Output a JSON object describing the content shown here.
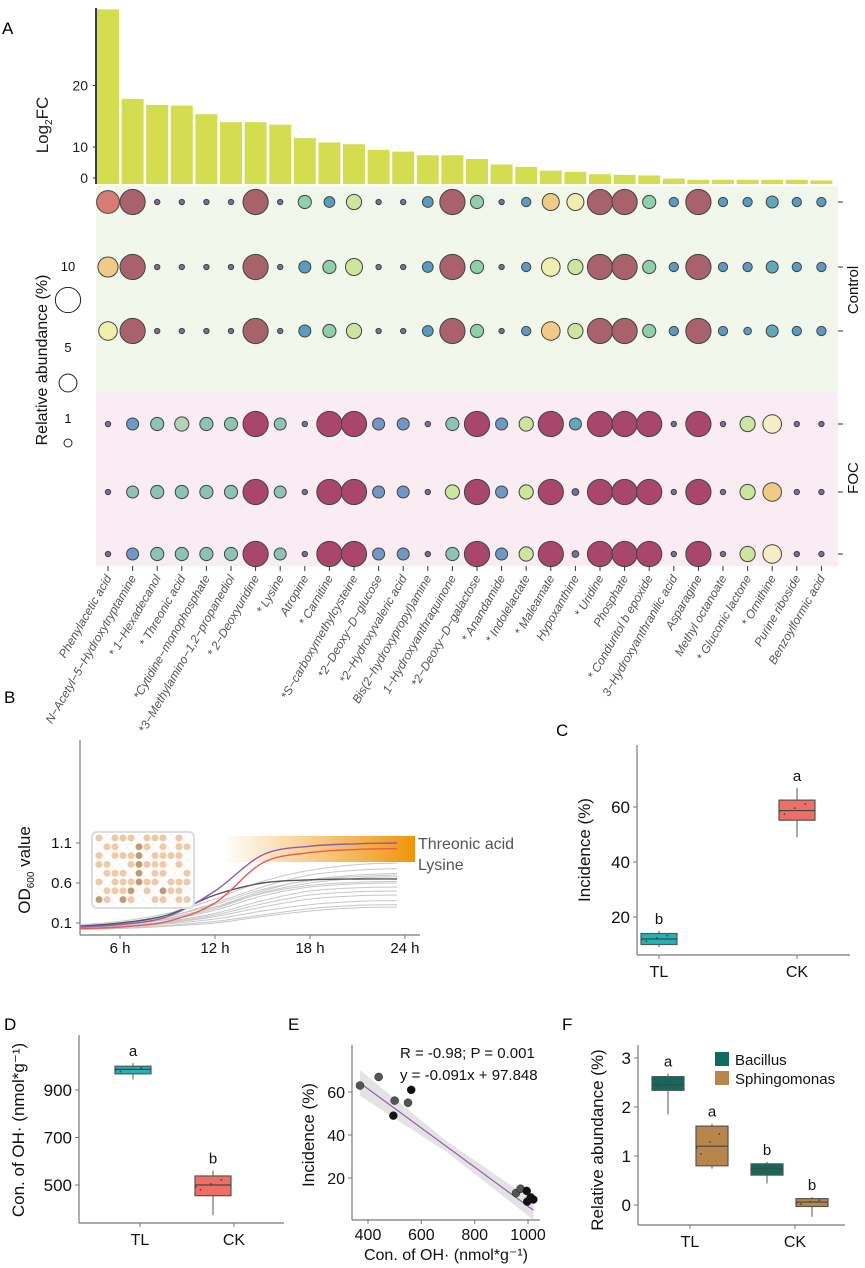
{
  "panel_letters": {
    "a": "A",
    "b": "B",
    "c": "C",
    "d": "D",
    "e": "E",
    "f": "F"
  },
  "colors": {
    "bar": "#d4dc50",
    "control_band": "#f1f7ea",
    "foc_band": "#f9ecf2",
    "bubble_palette": {
      "C": "#d67c72",
      "R": "#a8626b",
      "P": "#7b6ba6",
      "G": "#8fcfaa",
      "B": "#5c9bc0",
      "LG": "#cde59f",
      "O": "#f0cb88",
      "Y": "#f1efb0",
      "T2": "#5fa8bb",
      "BB": "#6f98c3",
      "T": "#8dc3b3",
      "LT": "#b2d4b5",
      "M": "#a9466b",
      "CR": "#f5edc6"
    },
    "tl": "#22b3b5",
    "ck": "#ee6f66",
    "bacillus": "#0f6b5e",
    "sphingomonas": "#b8864a",
    "threonic": "#8a5cb8",
    "lysine": "#ef5a50",
    "band": "#f0950a",
    "regression": "#9b59b6"
  },
  "chart_data": [
    {
      "panel": "A",
      "type": "bar",
      "ylabel": "Log2FC",
      "ylabel_main": "Log",
      "ylabel_sub": "2",
      "ylabel_rest": "FC",
      "yticks": [
        0,
        10,
        20
      ],
      "categories": [
        "Phenylacetic acid",
        "N−Acetyl−5−Hydroxytryptamine",
        "* 1−Hexadecanol",
        "* Threonic acid",
        "*Cytidine−monophosphate",
        "*3−Methylamino−1,2−propanediol",
        "* 2−Deoxyuridine",
        "* Lysine",
        "Atropine",
        "* Carnitine",
        "*S−carboxymethylcysteine",
        "*2−Deoxy−D−glucose",
        "*2−Hydroxyvaleric acid",
        "Bis(2−hydroxypropyl)amine",
        "1−Hydroxyanthraquinone",
        "*2−Deoxy−D−galactose",
        "* Anandamide",
        "* Indolelactate",
        "* Maleamate",
        "Hypoxanthine",
        "* Uridine",
        "Phosphate",
        "* Conduritol b epoxide",
        "3−Hydroxyanthranilic acid",
        "Asparagine",
        "Methyl octanoate",
        "* Gluconic lactone",
        "* Ornithine",
        "Purine riboside",
        "Benzoylformic acid"
      ],
      "values": [
        32.4,
        17.8,
        16.8,
        16.7,
        15.3,
        14.0,
        14.0,
        13.6,
        11.4,
        10.7,
        10.4,
        9.5,
        9.2,
        8.6,
        8.6,
        8.0,
        7.1,
        6.7,
        6.1,
        5.9,
        5.5,
        5.4,
        5.3,
        4.8,
        4.6,
        4.6,
        4.6,
        4.6,
        4.6,
        4.5
      ]
    },
    {
      "panel": "A",
      "type": "bubble",
      "legend_title": "Relative abundance (%)",
      "legend_sizes": [
        10,
        5,
        1
      ],
      "groups": [
        "Control",
        "FOC"
      ],
      "rows": [
        {
          "group": "Control",
          "colors": [
            "C",
            "R",
            "P",
            "P",
            "P",
            "P",
            "R",
            "P",
            "G",
            "B",
            "LG",
            "P",
            "P",
            "B",
            "R",
            "G",
            "P",
            "B",
            "O",
            "Y",
            "R",
            "R",
            "G",
            "B",
            "R",
            "B",
            "B",
            "T2",
            "B",
            "B"
          ],
          "values": [
            9,
            11,
            0.5,
            0.5,
            0.5,
            0.5,
            11,
            0.5,
            3,
            2,
            4,
            0.5,
            0.5,
            2,
            11,
            3,
            0.5,
            1.5,
            5,
            5,
            11,
            11,
            3,
            1.5,
            11,
            1.5,
            1.5,
            2.5,
            1.5,
            1.5
          ]
        },
        {
          "group": "Control",
          "colors": [
            "O",
            "R",
            "P",
            "P",
            "P",
            "P",
            "R",
            "P",
            "B",
            "G",
            "LG",
            "P",
            "P",
            "B",
            "R",
            "G",
            "P",
            "B",
            "Y",
            "LG",
            "R",
            "R",
            "G",
            "B",
            "R",
            "B",
            "B",
            "T2",
            "B",
            "B"
          ],
          "values": [
            7,
            11,
            0.5,
            0.5,
            0.5,
            0.5,
            11,
            0.5,
            2.5,
            3,
            5,
            0.5,
            0.5,
            2,
            11,
            3,
            0.5,
            1.5,
            6,
            4,
            11,
            11,
            3,
            1.5,
            11,
            1.5,
            1.5,
            2.5,
            1.5,
            1.5
          ]
        },
        {
          "group": "Control",
          "colors": [
            "Y",
            "R",
            "P",
            "P",
            "P",
            "P",
            "R",
            "P",
            "B",
            "G",
            "LG",
            "P",
            "P",
            "B",
            "R",
            "G",
            "P",
            "B",
            "O",
            "LG",
            "R",
            "R",
            "G",
            "B",
            "R",
            "B",
            "B",
            "T2",
            "B",
            "B"
          ],
          "values": [
            6,
            11,
            0.5,
            0.5,
            0.5,
            0.5,
            11,
            0.5,
            2.5,
            3,
            4,
            0.5,
            0.5,
            2,
            11,
            3,
            0.5,
            1.5,
            6,
            4,
            11,
            11,
            3,
            1.5,
            11,
            1.5,
            1,
            2.5,
            1.5,
            1.5
          ]
        },
        {
          "group": "FOC",
          "colors": [
            "P",
            "BB",
            "T",
            "LT",
            "T",
            "T",
            "M",
            "T",
            "P",
            "M",
            "M",
            "BB",
            "BB",
            "P",
            "T",
            "M",
            "BB",
            "LG",
            "M",
            "T2",
            "M",
            "M",
            "M",
            "P",
            "M",
            "P",
            "LG",
            "CR",
            "P",
            "P"
          ],
          "values": [
            0.5,
            2.5,
            3,
            3.5,
            3,
            3,
            11,
            2.5,
            0.5,
            11,
            11,
            2.5,
            2.5,
            0.5,
            3,
            11,
            2.5,
            3.5,
            11,
            2.5,
            11,
            11,
            11,
            0.5,
            11,
            0.5,
            4,
            6,
            0.5,
            0.5
          ]
        },
        {
          "group": "FOC",
          "colors": [
            "P",
            "T",
            "T",
            "T",
            "T",
            "T",
            "M",
            "T",
            "P",
            "M",
            "M",
            "BB",
            "BB",
            "P",
            "LG",
            "M",
            "BB",
            "LG",
            "M",
            "P",
            "M",
            "M",
            "M",
            "P",
            "M",
            "P",
            "LG",
            "O",
            "P",
            "P"
          ],
          "values": [
            0.5,
            2.5,
            3,
            3,
            3,
            3,
            11,
            2.5,
            0.5,
            11,
            11,
            2.5,
            2.5,
            0.5,
            3.5,
            11,
            2.5,
            3.5,
            11,
            0.8,
            11,
            11,
            11,
            0.5,
            11,
            0.5,
            4,
            6,
            0.5,
            0.5
          ]
        },
        {
          "group": "FOC",
          "colors": [
            "P",
            "BB",
            "T",
            "T",
            "T",
            "T",
            "M",
            "T",
            "P",
            "M",
            "M",
            "BB",
            "BB",
            "P",
            "T",
            "M",
            "BB",
            "LG",
            "M",
            "P",
            "M",
            "M",
            "M",
            "P",
            "M",
            "P",
            "LG",
            "CR",
            "P",
            "P"
          ],
          "values": [
            0.5,
            2.5,
            3,
            3,
            3,
            3,
            11,
            2.5,
            0.5,
            11,
            11,
            2.5,
            2.5,
            0.5,
            3,
            11,
            2.5,
            3.5,
            11,
            0.8,
            11,
            11,
            11,
            0.5,
            11,
            0.5,
            4,
            6,
            0.5,
            0.5
          ]
        }
      ]
    },
    {
      "panel": "B",
      "type": "line",
      "ylabel_main": "OD",
      "ylabel_sub": "600",
      "ylabel_rest": " value",
      "yticks": [
        0.1,
        0.6,
        1.1
      ],
      "xticks": [
        "6 h",
        "12 h",
        "18 h",
        "24 h"
      ],
      "x": [
        3.5,
        6,
        9,
        12,
        15,
        18,
        21,
        23.5
      ],
      "series": [
        {
          "name": "Threonic acid",
          "color": "threonic",
          "values": [
            0.05,
            0.08,
            0.18,
            0.5,
            0.95,
            1.06,
            1.09,
            1.1
          ]
        },
        {
          "name": "Lysine",
          "color": "lysine",
          "values": [
            0.03,
            0.05,
            0.12,
            0.35,
            0.85,
            0.98,
            1.02,
            1.03
          ]
        },
        {
          "color": "dark",
          "values": [
            0.06,
            0.1,
            0.2,
            0.45,
            0.6,
            0.64,
            0.65,
            0.65
          ]
        },
        {
          "values": [
            0.08,
            0.12,
            0.22,
            0.4,
            0.62,
            0.76,
            0.83,
            0.85
          ]
        },
        {
          "values": [
            0.07,
            0.1,
            0.18,
            0.35,
            0.55,
            0.7,
            0.76,
            0.78
          ]
        },
        {
          "values": [
            0.06,
            0.09,
            0.16,
            0.3,
            0.5,
            0.64,
            0.7,
            0.72
          ]
        },
        {
          "values": [
            0.05,
            0.08,
            0.15,
            0.28,
            0.48,
            0.6,
            0.66,
            0.68
          ]
        },
        {
          "values": [
            0.05,
            0.08,
            0.14,
            0.26,
            0.44,
            0.55,
            0.59,
            0.6
          ]
        },
        {
          "values": [
            0.04,
            0.07,
            0.12,
            0.22,
            0.38,
            0.5,
            0.54,
            0.55
          ]
        },
        {
          "values": [
            0.04,
            0.06,
            0.11,
            0.2,
            0.34,
            0.45,
            0.49,
            0.5
          ]
        },
        {
          "values": [
            0.03,
            0.05,
            0.1,
            0.18,
            0.3,
            0.4,
            0.44,
            0.45
          ]
        },
        {
          "values": [
            0.03,
            0.05,
            0.09,
            0.15,
            0.25,
            0.33,
            0.37,
            0.38
          ]
        },
        {
          "values": [
            0.02,
            0.04,
            0.07,
            0.12,
            0.2,
            0.28,
            0.32,
            0.33
          ]
        },
        {
          "values": [
            0.02,
            0.03,
            0.06,
            0.1,
            0.18,
            0.25,
            0.29,
            0.3
          ]
        },
        {
          "values": [
            0.06,
            0.1,
            0.18,
            0.33,
            0.52,
            0.63,
            0.68,
            0.7
          ]
        },
        {
          "values": [
            0.05,
            0.09,
            0.16,
            0.3,
            0.47,
            0.57,
            0.61,
            0.62
          ]
        }
      ],
      "band_labels": [
        "Threonic acid",
        "Lysine"
      ]
    },
    {
      "panel": "C",
      "type": "box",
      "ylabel": "Incidence (%)",
      "yticks": [
        20,
        40,
        60
      ],
      "categories": [
        "TL",
        "CK"
      ],
      "boxes": [
        {
          "group": "TL",
          "min": 9,
          "q1": 10,
          "median": 12,
          "q3": 14,
          "max": 15,
          "letter": "b",
          "color": "tl"
        },
        {
          "group": "CK",
          "min": 49,
          "q1": 55.2,
          "median": 58.7,
          "q3": 62.5,
          "max": 66.9,
          "letter": "a",
          "color": "ck"
        }
      ]
    },
    {
      "panel": "D",
      "type": "box",
      "ylabel": "Con. of OH· (nmol*g⁻¹)",
      "yticks": [
        500,
        700,
        900
      ],
      "categories": [
        "TL",
        "CK"
      ],
      "boxes": [
        {
          "group": "TL",
          "min": 945,
          "q1": 968,
          "median": 987,
          "q3": 1000,
          "max": 1013,
          "letter": "a",
          "color": "tl"
        },
        {
          "group": "CK",
          "min": 373,
          "q1": 455,
          "median": 500,
          "q3": 538,
          "max": 561,
          "letter": "b",
          "color": "ck"
        }
      ]
    },
    {
      "panel": "E",
      "type": "scatter",
      "xlabel": "Con. of OH· (nmol*g⁻¹)",
      "ylabel": "Incidence (%)",
      "xticks": [
        400,
        600,
        800,
        1000
      ],
      "yticks": [
        20,
        40,
        60
      ],
      "annotation_1": "R = -0.98; P = 0.001",
      "annotation_2": "y = -0.091x + 97.848",
      "fit": {
        "slope": -0.091,
        "intercept": 97.848,
        "x_from": 370,
        "x_to": 1020
      },
      "points": [
        [
          370,
          63,
          "g"
        ],
        [
          440,
          67,
          "g"
        ],
        [
          500,
          56,
          "g"
        ],
        [
          495,
          49,
          "k"
        ],
        [
          550,
          55,
          "g"
        ],
        [
          562,
          61,
          "k"
        ],
        [
          955,
          13,
          "g"
        ],
        [
          972,
          15,
          "g"
        ],
        [
          995,
          14,
          "k"
        ],
        [
          997,
          9,
          "k"
        ],
        [
          1010,
          11,
          "k"
        ],
        [
          1020,
          10,
          "k"
        ]
      ]
    },
    {
      "panel": "F",
      "type": "box",
      "ylabel": "Relative abundance (%)",
      "yticks": [
        0,
        1,
        2,
        3
      ],
      "categories": [
        "TL",
        "CK"
      ],
      "legend": [
        "Bacillus",
        "Sphingomonas"
      ],
      "boxes": [
        {
          "group": "TL",
          "series": "Bacillus",
          "min": 1.85,
          "q1": 2.34,
          "median": 2.45,
          "q3": 2.62,
          "max": 2.68,
          "letter": "a",
          "color": "bacillus"
        },
        {
          "group": "TL",
          "series": "Sphingomonas",
          "min": 0.74,
          "q1": 0.8,
          "median": 1.2,
          "q3": 1.61,
          "max": 1.66,
          "letter": "a",
          "color": "sphingomonas"
        },
        {
          "group": "CK",
          "series": "Bacillus",
          "min": 0.44,
          "q1": 0.61,
          "median": 0.75,
          "q3": 0.84,
          "max": 0.88,
          "letter": "b",
          "color": "bacillus"
        },
        {
          "group": "CK",
          "series": "Sphingomonas",
          "min": -0.24,
          "q1": -0.03,
          "median": 0.06,
          "q3": 0.13,
          "max": 0.16,
          "letter": "b",
          "color": "sphingomonas"
        }
      ]
    }
  ]
}
